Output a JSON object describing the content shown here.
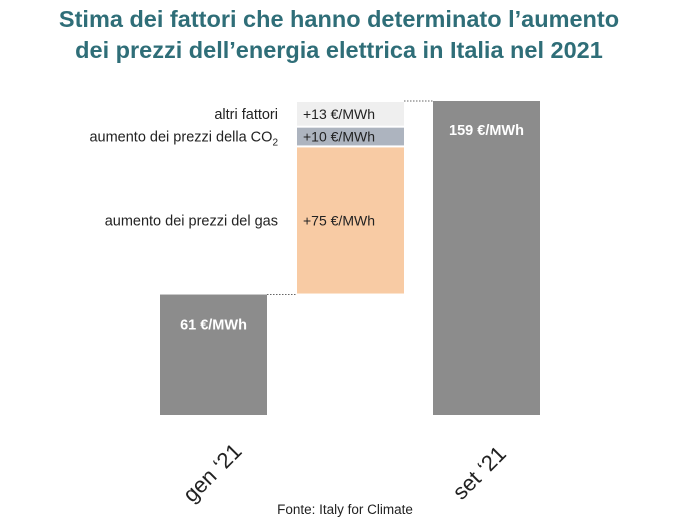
{
  "title_line1": "Stima dei fattori che hanno determinato l’aumento",
  "title_line2": "dei prezzi dell’energia elettrica in Italia nel 2021",
  "source": "Fonte: Italy for Climate",
  "chart_data": {
    "type": "waterfall",
    "unit": "€/MWh",
    "ylim": [
      0,
      159
    ],
    "grid": false,
    "legend": "none",
    "categories": [
      "gen ‘21",
      "set ‘21"
    ],
    "start": {
      "category": "gen ‘21",
      "value": 61,
      "label": "61 €/MWh",
      "color": "#8c8c8c"
    },
    "steps": [
      {
        "name": "aumento dei prezzi del gas",
        "value": 75,
        "label": "+75 €/MWh",
        "color": "#f8cba4"
      },
      {
        "name": "aumento dei prezzi della CO",
        "name_subscript": "2",
        "value": 10,
        "label": "+10 €/MWh",
        "color": "#adb4bf"
      },
      {
        "name": "altri fattori",
        "value": 13,
        "label": "+13 €/MWh",
        "color": "#efefef"
      }
    ],
    "end": {
      "category": "set ‘21",
      "value": 159,
      "label": "159 €/MWh",
      "color": "#8c8c8c"
    }
  }
}
